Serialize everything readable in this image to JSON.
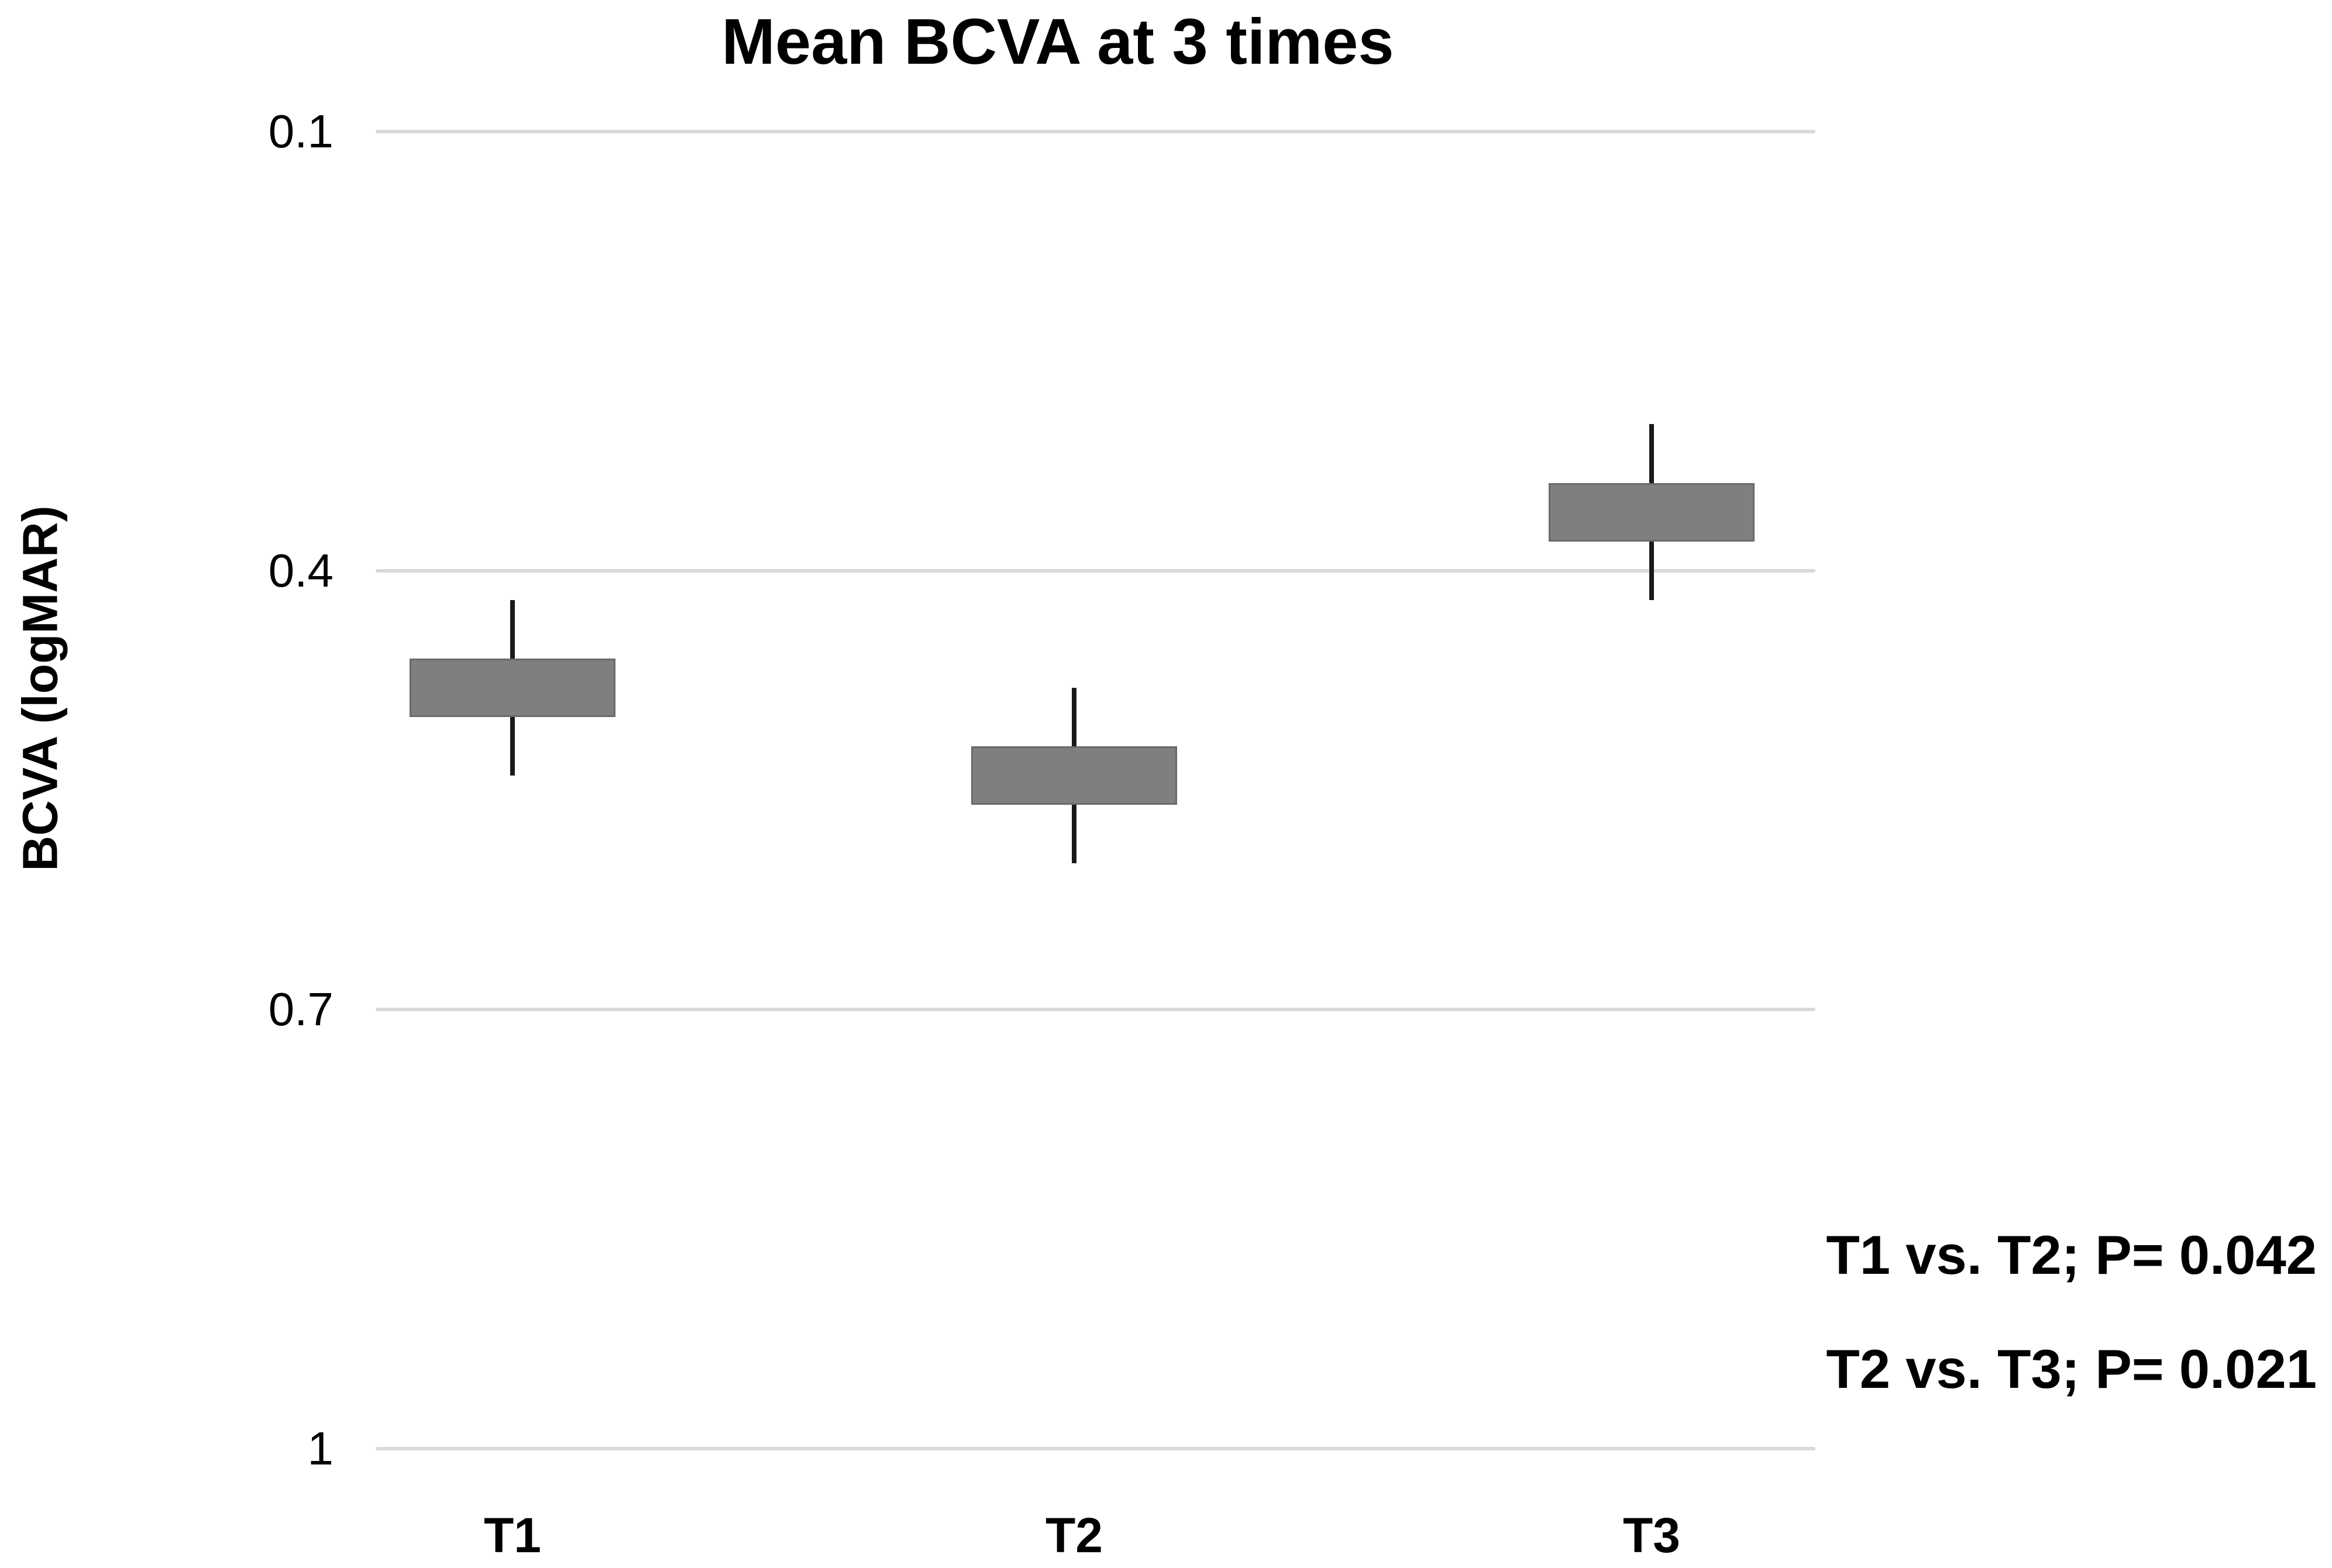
{
  "title": "Mean BCVA at 3 times",
  "y_axis_label": "BCVA (logMAR)",
  "annotations": {
    "line1": "T1 vs. T2; P= 0.042",
    "line2": "T2 vs. T3; P= 0.021"
  },
  "colors": {
    "background": "#ffffff",
    "box_fill": "#7f7f7f",
    "box_border": "#6a6a6a",
    "whisker": "#1a1a1a",
    "gridline": "#d9d9d9",
    "text": "#000000"
  },
  "chart_data": {
    "type": "bar",
    "subtype": "floating-box-with-whiskers",
    "title": "Mean BCVA at 3 times",
    "xlabel": "",
    "ylabel": "BCVA (logMAR)",
    "categories": [
      "T1",
      "T2",
      "T3"
    ],
    "y_ticks": [
      0.1,
      0.4,
      0.7,
      1
    ],
    "y_tick_labels": [
      "0.1",
      "0.4",
      "0.7",
      "1"
    ],
    "ylim": [
      0.1,
      1
    ],
    "y_axis_inverted": true,
    "grid": "horizontal-only",
    "legend": "none",
    "series": [
      {
        "name": "T1",
        "mean": 0.48,
        "box_low": 0.46,
        "box_high": 0.5,
        "whisker_low": 0.42,
        "whisker_high": 0.54
      },
      {
        "name": "T2",
        "mean": 0.54,
        "box_low": 0.52,
        "box_high": 0.56,
        "whisker_low": 0.48,
        "whisker_high": 0.6
      },
      {
        "name": "T3",
        "mean": 0.36,
        "box_low": 0.34,
        "box_high": 0.38,
        "whisker_low": 0.3,
        "whisker_high": 0.42
      }
    ],
    "annotations": [
      "T1 vs. T2; P= 0.042",
      "T2 vs. T3; P= 0.021"
    ]
  }
}
